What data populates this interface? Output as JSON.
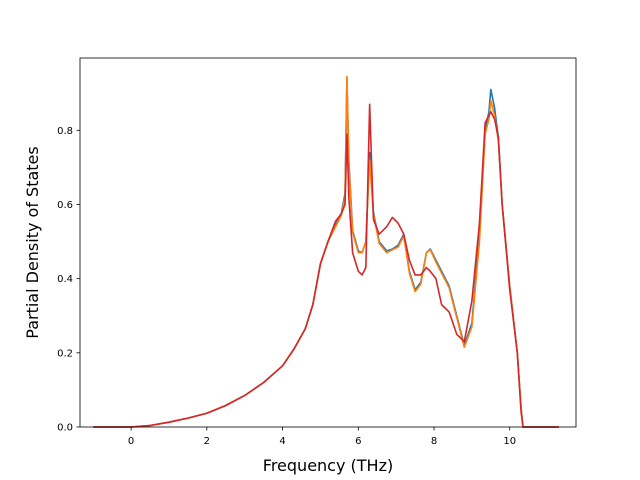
{
  "chart_data": {
    "type": "line",
    "title": "",
    "xlabel": "Frequency (THz)",
    "ylabel": "Partial Density of States",
    "xlim": [
      -1.35,
      11.75
    ],
    "ylim": [
      0,
      0.995
    ],
    "xticks": [
      0,
      2,
      4,
      6,
      8,
      10
    ],
    "yticks": [
      0.0,
      0.2,
      0.4,
      0.6,
      0.8
    ],
    "ytick_labels": [
      "0.0",
      "0.2",
      "0.4",
      "0.6",
      "0.8"
    ],
    "grid": false,
    "legend": "none",
    "series": [
      {
        "color": "#1f77b4",
        "x": [
          -1.0,
          0.0,
          0.5,
          1.0,
          1.5,
          2.0,
          2.5,
          3.0,
          3.5,
          4.0,
          4.3,
          4.6,
          4.8,
          5.0,
          5.2,
          5.4,
          5.55,
          5.65,
          5.7,
          5.75,
          5.85,
          6.0,
          6.1,
          6.2,
          6.3,
          6.4,
          6.55,
          6.75,
          6.9,
          7.05,
          7.2,
          7.35,
          7.5,
          7.65,
          7.8,
          7.9,
          8.05,
          8.2,
          8.4,
          8.6,
          8.8,
          9.0,
          9.2,
          9.35,
          9.45,
          9.5,
          9.6,
          9.7,
          9.8,
          10.0,
          10.2,
          10.3,
          10.35,
          10.5,
          11.3
        ],
        "values": [
          0.0,
          0.0,
          0.004,
          0.013,
          0.024,
          0.037,
          0.058,
          0.085,
          0.12,
          0.165,
          0.21,
          0.265,
          0.33,
          0.44,
          0.5,
          0.545,
          0.575,
          0.63,
          0.94,
          0.72,
          0.53,
          0.475,
          0.47,
          0.5,
          0.74,
          0.58,
          0.5,
          0.475,
          0.48,
          0.49,
          0.52,
          0.42,
          0.37,
          0.39,
          0.47,
          0.48,
          0.45,
          0.42,
          0.38,
          0.3,
          0.22,
          0.28,
          0.52,
          0.8,
          0.85,
          0.91,
          0.86,
          0.78,
          0.6,
          0.38,
          0.2,
          0.05,
          0.0,
          0.0,
          0.0
        ]
      },
      {
        "color": "#ff7f0e",
        "x": [
          -1.0,
          0.0,
          0.5,
          1.0,
          1.5,
          2.0,
          2.5,
          3.0,
          3.5,
          4.0,
          4.3,
          4.6,
          4.8,
          5.0,
          5.2,
          5.4,
          5.55,
          5.65,
          5.7,
          5.75,
          5.85,
          6.0,
          6.1,
          6.2,
          6.3,
          6.4,
          6.55,
          6.75,
          6.9,
          7.05,
          7.2,
          7.35,
          7.5,
          7.65,
          7.8,
          7.9,
          8.05,
          8.2,
          8.4,
          8.6,
          8.8,
          9.0,
          9.2,
          9.35,
          9.45,
          9.5,
          9.6,
          9.7,
          9.8,
          10.0,
          10.2,
          10.3,
          10.35,
          10.5,
          11.3
        ],
        "values": [
          0.0,
          0.0,
          0.004,
          0.013,
          0.024,
          0.037,
          0.058,
          0.085,
          0.12,
          0.165,
          0.21,
          0.265,
          0.33,
          0.44,
          0.5,
          0.54,
          0.57,
          0.62,
          0.945,
          0.71,
          0.525,
          0.47,
          0.47,
          0.5,
          0.72,
          0.575,
          0.495,
          0.47,
          0.478,
          0.485,
          0.515,
          0.415,
          0.365,
          0.385,
          0.47,
          0.478,
          0.445,
          0.415,
          0.375,
          0.295,
          0.215,
          0.27,
          0.5,
          0.79,
          0.83,
          0.88,
          0.84,
          0.77,
          0.6,
          0.38,
          0.2,
          0.05,
          0.0,
          0.0,
          0.0
        ]
      },
      {
        "color": "#d62728",
        "x": [
          -1.0,
          0.0,
          0.5,
          1.0,
          1.5,
          2.0,
          2.5,
          3.0,
          3.5,
          4.0,
          4.3,
          4.6,
          4.8,
          5.0,
          5.2,
          5.4,
          5.55,
          5.65,
          5.7,
          5.75,
          5.85,
          6.0,
          6.1,
          6.2,
          6.3,
          6.4,
          6.55,
          6.75,
          6.9,
          7.05,
          7.2,
          7.35,
          7.5,
          7.65,
          7.8,
          7.9,
          8.05,
          8.2,
          8.4,
          8.6,
          8.8,
          9.0,
          9.2,
          9.35,
          9.45,
          9.5,
          9.6,
          9.7,
          9.8,
          10.0,
          10.2,
          10.3,
          10.35,
          10.5,
          11.3
        ],
        "values": [
          0.0,
          0.0,
          0.004,
          0.013,
          0.024,
          0.037,
          0.058,
          0.085,
          0.12,
          0.165,
          0.21,
          0.265,
          0.33,
          0.44,
          0.5,
          0.555,
          0.575,
          0.6,
          0.79,
          0.62,
          0.47,
          0.42,
          0.41,
          0.43,
          0.87,
          0.56,
          0.52,
          0.54,
          0.565,
          0.55,
          0.52,
          0.45,
          0.41,
          0.41,
          0.43,
          0.42,
          0.4,
          0.33,
          0.31,
          0.25,
          0.23,
          0.34,
          0.55,
          0.82,
          0.84,
          0.85,
          0.83,
          0.78,
          0.6,
          0.37,
          0.2,
          0.04,
          0.0,
          0.0,
          0.0
        ]
      }
    ]
  }
}
